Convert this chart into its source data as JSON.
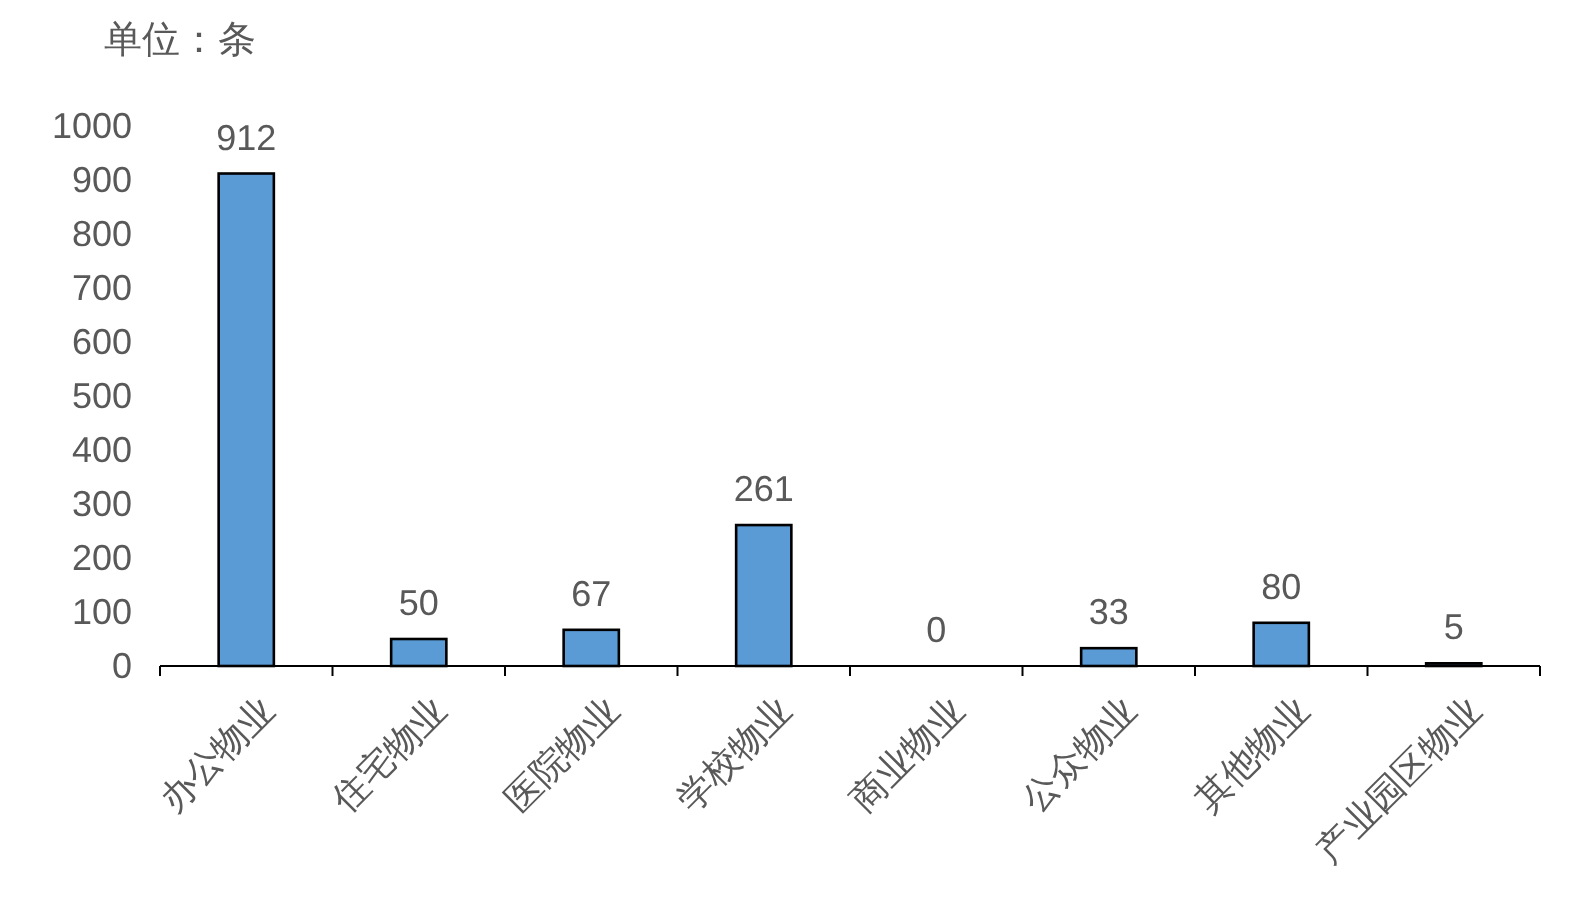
{
  "chart_data": {
    "type": "bar",
    "ylabel": "单位：条",
    "categories": [
      "办公物业",
      "住宅物业",
      "医院物业",
      "学校物业",
      "商业物业",
      "公众物业",
      "其他物业",
      "产业园区物业"
    ],
    "values": [
      912,
      50,
      67,
      261,
      0,
      33,
      80,
      5
    ],
    "color": "#5b9bd5",
    "ylim": [
      0,
      1000
    ],
    "yticks": [
      0,
      100,
      200,
      300,
      400,
      500,
      600,
      700,
      800,
      900,
      1000
    ],
    "data_labels": true
  }
}
